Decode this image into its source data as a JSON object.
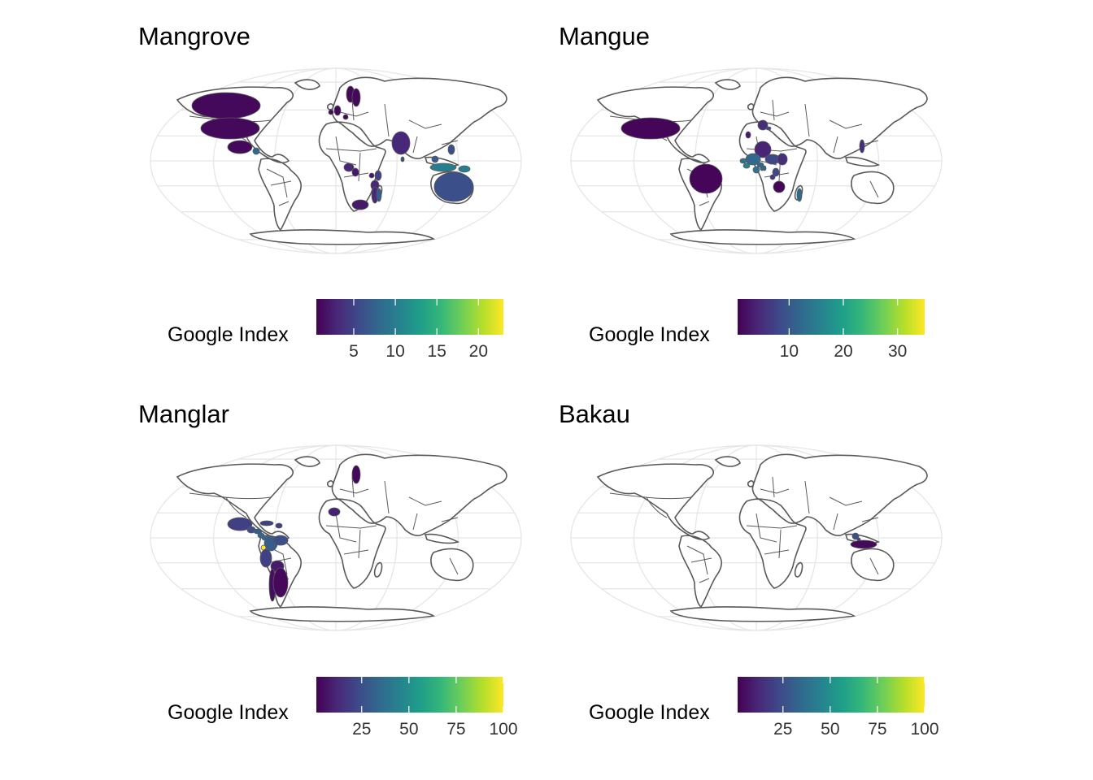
{
  "panels": [
    {
      "title": "Mangrove",
      "legend": {
        "title": "Google Index",
        "min": 0.5,
        "max": 23,
        "ticks": [
          5,
          10,
          15,
          20
        ]
      },
      "highlighted_regions": [
        {
          "name": "Canada",
          "value": 1
        },
        {
          "name": "United States",
          "value": 1
        },
        {
          "name": "Mexico",
          "value": 1
        },
        {
          "name": "Belize",
          "value": 8
        },
        {
          "name": "United Kingdom",
          "value": 1
        },
        {
          "name": "Ireland",
          "value": 1
        },
        {
          "name": "Norway",
          "value": 1
        },
        {
          "name": "Sweden",
          "value": 1
        },
        {
          "name": "Netherlands",
          "value": 1
        },
        {
          "name": "Nigeria",
          "value": 3
        },
        {
          "name": "Cameroon",
          "value": 2
        },
        {
          "name": "Kenya",
          "value": 5
        },
        {
          "name": "Uganda",
          "value": 2
        },
        {
          "name": "Tanzania",
          "value": 3
        },
        {
          "name": "Mozambique",
          "value": 3
        },
        {
          "name": "South Africa",
          "value": 2
        },
        {
          "name": "Madagascar",
          "value": 7
        },
        {
          "name": "India",
          "value": 3
        },
        {
          "name": "Sri Lanka",
          "value": 6
        },
        {
          "name": "Malaysia",
          "value": 7
        },
        {
          "name": "Philippines",
          "value": 6
        },
        {
          "name": "Indonesia",
          "value": 10
        },
        {
          "name": "Papua New Guinea",
          "value": 10
        },
        {
          "name": "Australia",
          "value": 6
        }
      ]
    },
    {
      "title": "Mangue",
      "legend": {
        "title": "Google Index",
        "min": 0.5,
        "max": 35,
        "ticks": [
          10,
          20,
          30
        ]
      },
      "highlighted_regions": [
        {
          "name": "United States",
          "value": 1
        },
        {
          "name": "Brazil",
          "value": 1
        },
        {
          "name": "France",
          "value": 5
        },
        {
          "name": "Switzerland",
          "value": 8
        },
        {
          "name": "Portugal",
          "value": 3
        },
        {
          "name": "Algeria",
          "value": 4
        },
        {
          "name": "Mali",
          "value": 12
        },
        {
          "name": "Niger",
          "value": 8
        },
        {
          "name": "Senegal",
          "value": 14
        },
        {
          "name": "Guinea",
          "value": 16
        },
        {
          "name": "Burkina Faso",
          "value": 12
        },
        {
          "name": "Ivory Coast",
          "value": 14
        },
        {
          "name": "Benin",
          "value": 12
        },
        {
          "name": "Togo",
          "value": 12
        },
        {
          "name": "Cameroon",
          "value": 8
        },
        {
          "name": "Chad",
          "value": 5
        },
        {
          "name": "Angola",
          "value": 1
        },
        {
          "name": "Gabon",
          "value": 6
        },
        {
          "name": "Madagascar",
          "value": 12
        },
        {
          "name": "Vietnam",
          "value": 5
        }
      ]
    },
    {
      "title": "Manglar",
      "legend": {
        "title": "Google Index",
        "min": 1,
        "max": 100,
        "ticks": [
          25,
          50,
          75,
          100
        ]
      },
      "highlighted_regions": [
        {
          "name": "Mexico",
          "value": 20
        },
        {
          "name": "Guatemala",
          "value": 25
        },
        {
          "name": "Honduras",
          "value": 30
        },
        {
          "name": "Cuba",
          "value": 20
        },
        {
          "name": "Dominican Republic",
          "value": 20
        },
        {
          "name": "Panama",
          "value": 35
        },
        {
          "name": "Costa Rica",
          "value": 35
        },
        {
          "name": "Colombia",
          "value": 30
        },
        {
          "name": "Venezuela",
          "value": 25
        },
        {
          "name": "Ecuador",
          "value": 100
        },
        {
          "name": "Peru",
          "value": 20
        },
        {
          "name": "Bolivia",
          "value": 8
        },
        {
          "name": "Chile",
          "value": 5
        },
        {
          "name": "Argentina",
          "value": 3
        },
        {
          "name": "Spain",
          "value": 10
        },
        {
          "name": "Sweden",
          "value": 3
        }
      ]
    },
    {
      "title": "Bakau",
      "legend": {
        "title": "Google Index",
        "min": 1,
        "max": 100,
        "ticks": [
          25,
          50,
          75,
          100
        ]
      },
      "highlighted_regions": [
        {
          "name": "Malaysia",
          "value": 25
        },
        {
          "name": "Singapore",
          "value": 20
        },
        {
          "name": "Indonesia",
          "value": 3
        }
      ]
    }
  ],
  "colors": {
    "viridis": [
      "#440154",
      "#482878",
      "#3e4989",
      "#31688e",
      "#26828e",
      "#1f9e89",
      "#35b779",
      "#6ece58",
      "#b5de2b",
      "#fde725"
    ],
    "land_fill": "#ffffff",
    "border": "#595959",
    "graticule": "#e6e6e6"
  }
}
